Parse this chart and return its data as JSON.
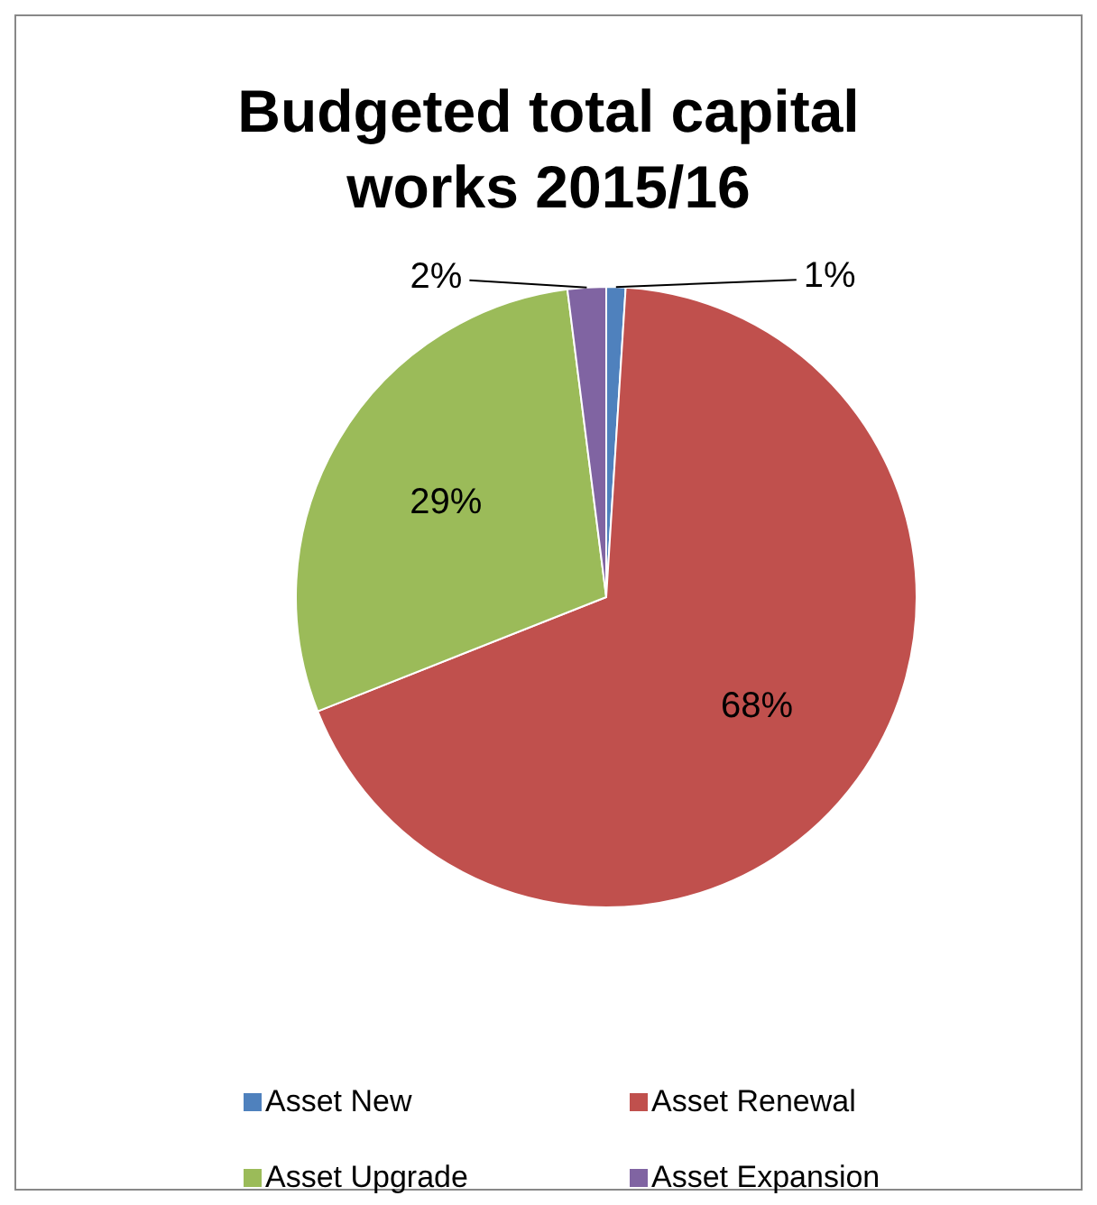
{
  "chart_data": {
    "type": "pie",
    "title": "Budgeted total capital works 2015/16",
    "categories": [
      "Asset New",
      "Asset Renewal",
      "Asset Upgrade",
      "Asset Expansion"
    ],
    "values": [
      1,
      68,
      29,
      2
    ],
    "colors": [
      "#4f81bd",
      "#c0504d",
      "#9bbb59",
      "#8064a2"
    ],
    "value_labels": [
      "1%",
      "68%",
      "29%",
      "2%"
    ],
    "legend": "bottom"
  }
}
